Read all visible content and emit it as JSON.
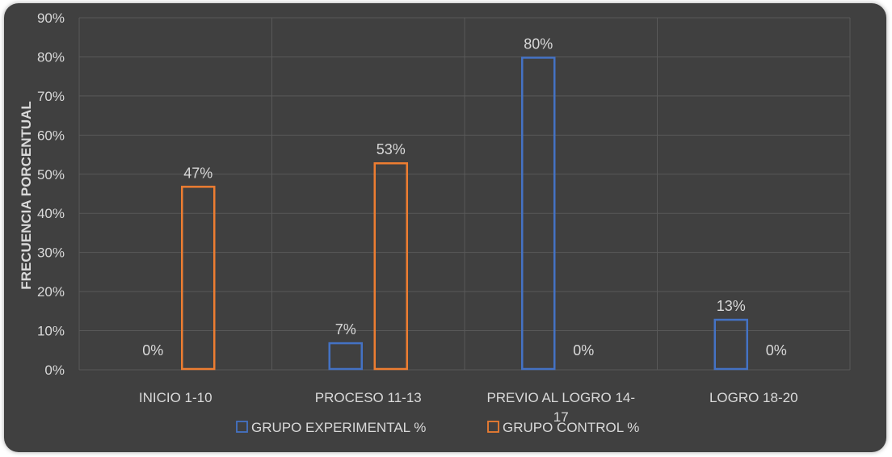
{
  "chart_data": {
    "type": "bar",
    "categories": [
      "INICIO 1-10",
      "PROCESO 11-13",
      "PREVIO AL LOGRO 14-17",
      "LOGRO 18-20"
    ],
    "category_lines": [
      [
        "INICIO 1-10"
      ],
      [
        "PROCESO 11-13"
      ],
      [
        "PREVIO AL LOGRO 14-",
        "17"
      ],
      [
        "LOGRO 18-20"
      ]
    ],
    "series": [
      {
        "name": "GRUPO EXPERIMENTAL %",
        "values": [
          0,
          7,
          80,
          13
        ],
        "color": "#4472c4"
      },
      {
        "name": "GRUPO CONTROL %",
        "values": [
          47,
          53,
          0,
          0
        ],
        "color": "#ed7d31"
      }
    ],
    "data_labels": [
      [
        "0%",
        "7%",
        "80%",
        "13%"
      ],
      [
        "47%",
        "53%",
        "0%",
        "0%"
      ]
    ],
    "ylabel": "FRECUENCIA PORCENTUAL",
    "ylim": [
      0,
      90
    ],
    "yticks": [
      0,
      10,
      20,
      30,
      40,
      50,
      60,
      70,
      80,
      90
    ],
    "ytick_labels": [
      "0%",
      "10%",
      "20%",
      "30%",
      "40%",
      "50%",
      "60%",
      "70%",
      "80%",
      "90%"
    ],
    "grid": true,
    "legend_position": "bottom",
    "background": "#404040"
  }
}
